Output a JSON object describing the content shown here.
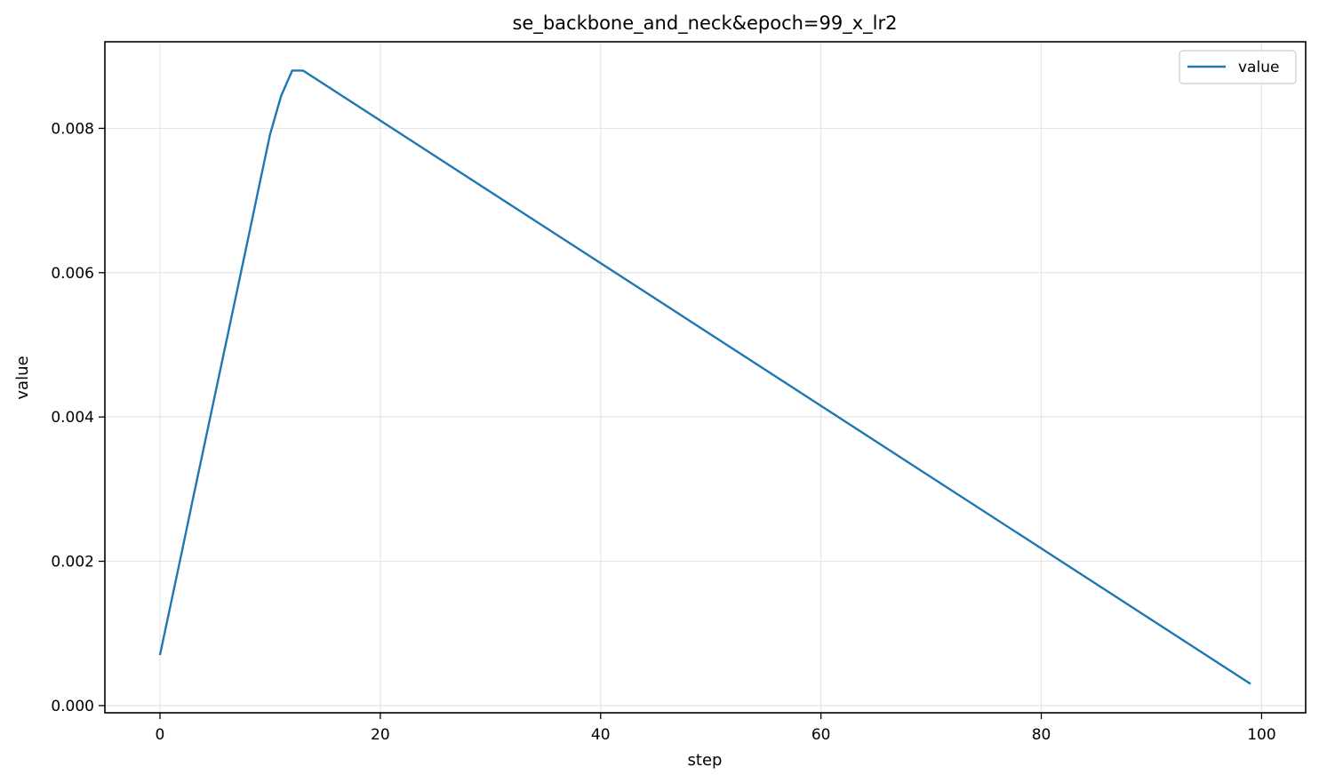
{
  "chart_data": {
    "type": "line",
    "title": "se_backbone_and_neck&epoch=99_x_lr2",
    "xlabel": "step",
    "ylabel": "value",
    "xlim": [
      -5,
      104
    ],
    "ylim": [
      -0.0001,
      0.0092
    ],
    "x_ticks": [
      0,
      20,
      40,
      60,
      80,
      100
    ],
    "x_tick_labels": [
      "0",
      "20",
      "40",
      "60",
      "80",
      "100"
    ],
    "y_ticks": [
      0,
      0.002,
      0.004,
      0.006,
      0.008
    ],
    "y_tick_labels": [
      "0.000",
      "0.002",
      "0.004",
      "0.006",
      "0.008"
    ],
    "grid": true,
    "legend": {
      "placement": "top-right",
      "entries": [
        "value"
      ]
    },
    "series": [
      {
        "name": "value",
        "color": "#1f77b4",
        "points": [
          [
            0,
            0.0007
          ],
          [
            1,
            0.00142
          ],
          [
            2,
            0.00214
          ],
          [
            3,
            0.00287
          ],
          [
            4,
            0.00359
          ],
          [
            5,
            0.00431
          ],
          [
            6,
            0.00503
          ],
          [
            7,
            0.00575
          ],
          [
            8,
            0.00647
          ],
          [
            9,
            0.0072
          ],
          [
            10,
            0.00792
          ],
          [
            11,
            0.00845
          ],
          [
            12,
            0.0088
          ],
          [
            13,
            0.0088
          ],
          [
            99,
            0.0003
          ]
        ]
      }
    ]
  }
}
